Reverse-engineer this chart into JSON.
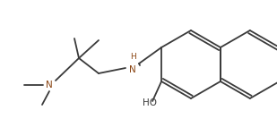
{
  "background_color": "#ffffff",
  "bond_color": "#3a3a3a",
  "text_color": "#3a3a3a",
  "nh_color": "#8B4513",
  "n_color": "#8B4513",
  "line_width": 1.3,
  "figsize": [
    3.09,
    1.52
  ],
  "dpi": 100,
  "xlim": [
    0,
    309
  ],
  "ylim": [
    0,
    152
  ]
}
